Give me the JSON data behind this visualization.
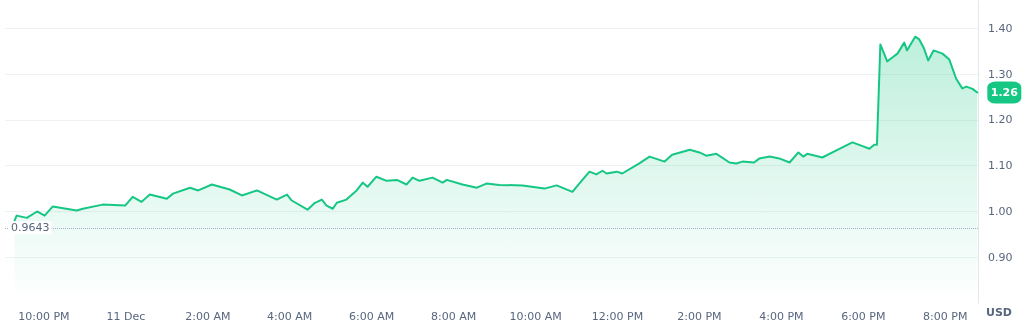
{
  "chart_data": {
    "type": "area",
    "ylabel": "USD",
    "x": [
      "--12-10T21:17",
      "--12-10T21:20",
      "--12-10T21:35",
      "--12-10T21:50",
      "--12-10T22:01",
      "--12-10T22:13",
      "--12-10T22:48",
      "--12-10T22:57",
      "--12-10T23:26",
      "--12-10T23:59",
      "--12-11T00:10",
      "--12-11T00:23",
      "--12-11T00:35",
      "--12-11T01:00",
      "--12-11T01:09",
      "--12-11T01:34",
      "--12-11T01:46",
      "--12-11T02:06",
      "--12-11T02:32",
      "--12-11T02:50",
      "--12-11T03:12",
      "--12-11T03:41",
      "--12-11T03:56",
      "--12-11T04:03",
      "--12-11T04:26",
      "--12-11T04:37",
      "--12-11T04:47",
      "--12-11T04:54",
      "--12-11T05:03",
      "--12-11T05:09",
      "--12-11T05:23",
      "--12-11T05:38",
      "--12-11T05:47",
      "--12-11T05:54",
      "--12-11T06:07",
      "--12-11T06:22",
      "--12-11T06:37",
      "--12-11T06:51",
      "--12-11T07:00",
      "--12-11T07:10",
      "--12-11T07:29",
      "--12-11T07:44",
      "--12-11T07:50",
      "--12-11T08:13",
      "--12-11T08:34",
      "--12-11T08:48",
      "--12-11T09:07",
      "--12-11T09:41",
      "--12-11T10:13",
      "--12-11T10:31",
      "--12-11T10:54",
      "--12-11T11:04",
      "--12-11T11:19",
      "--12-11T11:29",
      "--12-11T11:38",
      "--12-11T11:44",
      "--12-11T11:59",
      "--12-11T12:07",
      "--12-11T12:32",
      "--12-11T12:47",
      "--12-11T13:09",
      "--12-11T13:20",
      "--12-11T13:46",
      "--12-11T14:00",
      "--12-11T14:10",
      "--12-11T14:25",
      "--12-11T14:44",
      "--12-11T14:54",
      "--12-11T15:03",
      "--12-11T15:20",
      "--12-11T15:28",
      "--12-11T15:43",
      "--12-11T15:57",
      "--12-11T16:12",
      "--12-11T16:25",
      "--12-11T16:32",
      "--12-11T16:38",
      "--12-11T17:00",
      "--12-11T17:17",
      "--12-11T17:44",
      "--12-11T17:57",
      "--12-11T18:09",
      "--12-11T18:16",
      "--12-11T18:20",
      "--12-11T18:25",
      "--12-11T18:35",
      "--12-11T18:43",
      "--12-11T18:50",
      "--12-11T19:00",
      "--12-11T19:04",
      "--12-11T19:16",
      "--12-11T19:22",
      "--12-11T19:29",
      "--12-11T19:35",
      "--12-11T19:43",
      "--12-11T19:56",
      "--12-11T20:06",
      "--12-11T20:16",
      "--12-11T20:25",
      "--12-11T20:31",
      "--12-11T20:40",
      "--12-11T20:47"
    ],
    "values": [
      0.98,
      0.991,
      0.986,
      1.0,
      0.991,
      1.011,
      1.002,
      1.006,
      1.015,
      1.013,
      1.032,
      1.021,
      1.037,
      1.028,
      1.039,
      1.052,
      1.046,
      1.059,
      1.048,
      1.035,
      1.046,
      1.026,
      1.037,
      1.024,
      1.004,
      1.019,
      1.026,
      1.013,
      1.006,
      1.019,
      1.026,
      1.046,
      1.063,
      1.054,
      1.076,
      1.067,
      1.069,
      1.059,
      1.074,
      1.067,
      1.074,
      1.063,
      1.069,
      1.059,
      1.052,
      1.061,
      1.058,
      1.057,
      1.05,
      1.057,
      1.043,
      1.061,
      1.087,
      1.081,
      1.089,
      1.083,
      1.087,
      1.083,
      1.105,
      1.12,
      1.109,
      1.124,
      1.135,
      1.129,
      1.122,
      1.126,
      1.107,
      1.105,
      1.109,
      1.107,
      1.116,
      1.12,
      1.116,
      1.107,
      1.129,
      1.12,
      1.126,
      1.118,
      1.131,
      1.151,
      1.144,
      1.137,
      1.146,
      1.146,
      1.365,
      1.328,
      1.337,
      1.345,
      1.369,
      1.352,
      1.382,
      1.376,
      1.356,
      1.33,
      1.352,
      1.345,
      1.332,
      1.29,
      1.269,
      1.273,
      1.268,
      1.26
    ],
    "color": "#16c784",
    "marker": "none",
    "line_style": "solid",
    "grid": "y",
    "xlim": [
      "--12-10T21:03",
      "--12-11T20:48"
    ],
    "xticks": [
      {
        "value": "--12-10T22:00",
        "label": "10:00 PM"
      },
      {
        "value": "--12-11T00:00",
        "label": "11 Dec"
      },
      {
        "value": "--12-11T02:00",
        "label": "2:00 AM"
      },
      {
        "value": "--12-11T04:00",
        "label": "4:00 AM"
      },
      {
        "value": "--12-11T06:00",
        "label": "6:00 AM"
      },
      {
        "value": "--12-11T08:00",
        "label": "8:00 AM"
      },
      {
        "value": "--12-11T10:00",
        "label": "10:00 AM"
      },
      {
        "value": "--12-11T12:00",
        "label": "12:00 PM"
      },
      {
        "value": "--12-11T14:00",
        "label": "2:00 PM"
      },
      {
        "value": "--12-11T16:00",
        "label": "4:00 PM"
      },
      {
        "value": "--12-11T18:00",
        "label": "6:00 PM"
      },
      {
        "value": "--12-11T20:00",
        "label": "8:00 PM"
      }
    ],
    "ylim": [
      0.8,
      1.46
    ],
    "yticks": [
      {
        "value": 0.9,
        "label": "0.90"
      },
      {
        "value": 1.0,
        "label": "1.00"
      },
      {
        "value": 1.1,
        "label": "1.10"
      },
      {
        "value": 1.2,
        "label": "1.20"
      },
      {
        "value": 1.3,
        "label": "1.30"
      },
      {
        "value": 1.4,
        "label": "1.40"
      }
    ],
    "ref_lines": [
      {
        "axis": "y",
        "value": 0.9643,
        "label": "0.9643",
        "color": "#a6b0c3",
        "line_style": "dotted"
      }
    ],
    "annotations": [
      {
        "text": "1.26",
        "x": "--12-11T20:47",
        "y": 1.26
      }
    ]
  }
}
